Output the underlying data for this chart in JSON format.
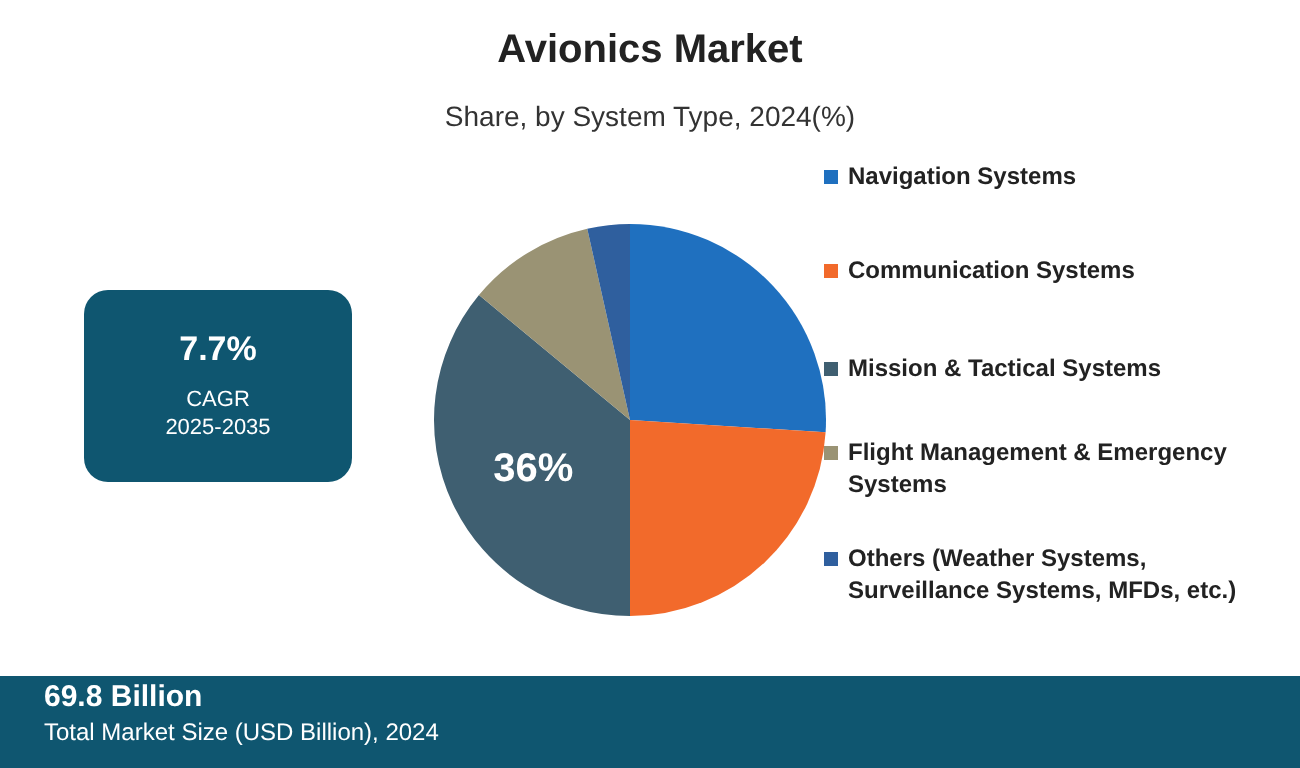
{
  "chart_data": {
    "type": "pie",
    "title": "Avionics Market",
    "subtitle": "Share, by System Type, 2024(%)",
    "categories": [
      "Navigation Systems",
      "Communication Systems",
      "Mission & Tactical Systems",
      "Flight Management & Emergency Systems",
      "Others (Weather Systems, Surveillance Systems, MFDs, etc.)"
    ],
    "values": [
      26,
      24,
      36,
      10.5,
      3.5
    ],
    "colors": [
      "#1f70bf",
      "#f26a2b",
      "#3f5f71",
      "#9a9374",
      "#2f5f9e"
    ],
    "value_labels": [
      null,
      null,
      "36%",
      null,
      null
    ],
    "legend": "right",
    "annotations": [
      "7.7%",
      "CAGR",
      "2025-2035",
      "69.8 Billion",
      "Total Market Size (USD Billion), 2024"
    ]
  }
}
